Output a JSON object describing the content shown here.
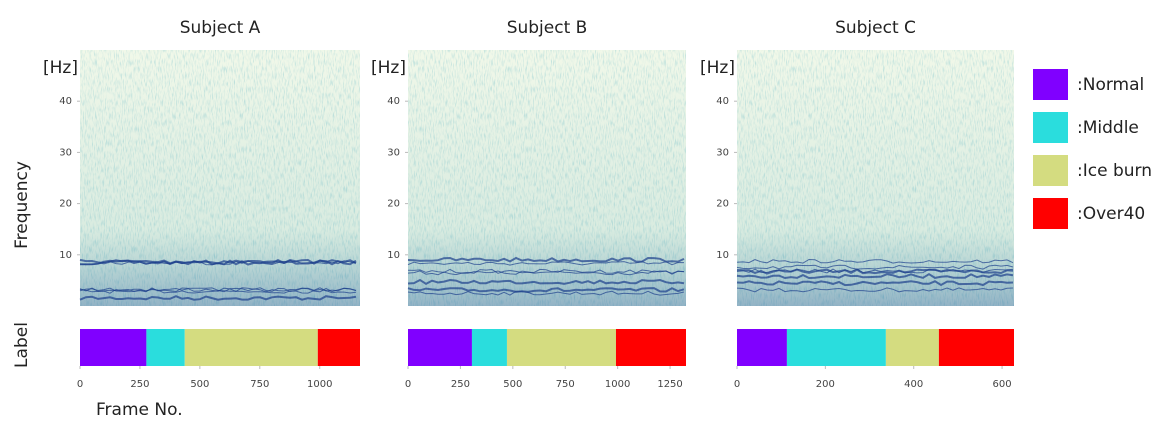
{
  "figure": {
    "ylabel": "Frequency",
    "strip_label": "Label",
    "xlabel": "Frame No.",
    "legend": [
      {
        "label": ":Normal",
        "color": "#8000ff"
      },
      {
        "label": ":Middle",
        "color": "#2adddd"
      },
      {
        "label": ":Ice burn",
        "color": "#d4dc80"
      },
      {
        "label": ":Over40",
        "color": "#ff0000"
      }
    ]
  },
  "chart_data": [
    {
      "type": "spectrogram",
      "title": "Subject A",
      "y_unit": "[Hz]",
      "ylim": [
        0,
        50
      ],
      "yticks": [
        10,
        20,
        30,
        40
      ],
      "xlim": [
        0,
        1168
      ],
      "xticks": [
        0,
        250,
        500,
        750,
        1000
      ],
      "values": [
        277,
        160,
        555,
        176
      ]
    },
    {
      "type": "spectrogram",
      "title": "Subject B",
      "y_unit": "[Hz]",
      "ylim": [
        0,
        50
      ],
      "yticks": [
        10,
        20,
        30,
        40
      ],
      "xlim": [
        0,
        1326
      ],
      "xticks": [
        0,
        250,
        500,
        750,
        1000,
        1250
      ],
      "values": [
        305,
        167,
        520,
        334
      ]
    },
    {
      "type": "spectrogram",
      "title": "Subject C",
      "y_unit": "[Hz]",
      "ylim": [
        0,
        50
      ],
      "yticks": [
        10,
        20,
        30,
        40
      ],
      "xlim": [
        0,
        627
      ],
      "xticks": [
        0,
        200,
        400,
        600
      ],
      "values": [
        113,
        224,
        120,
        170
      ]
    }
  ]
}
